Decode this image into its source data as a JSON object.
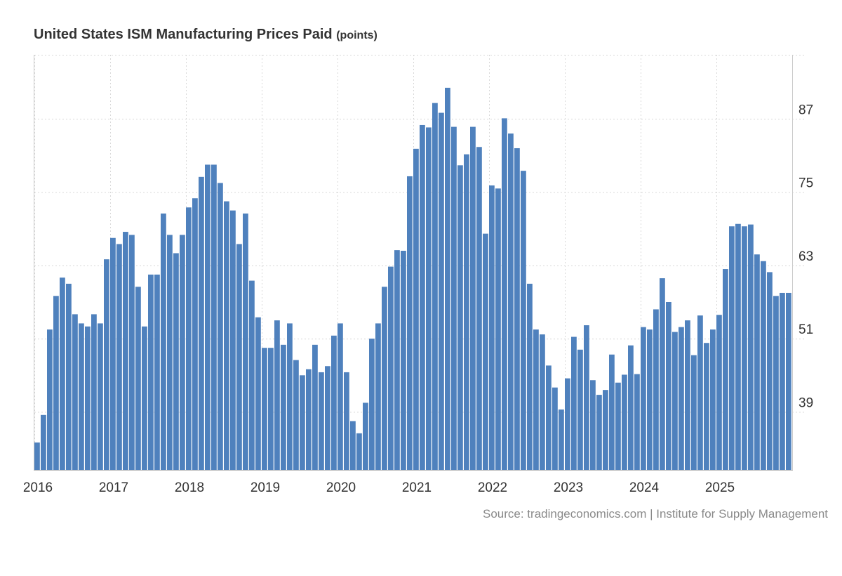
{
  "chart_data": {
    "type": "bar",
    "title": "United States ISM Manufacturing Prices Paid",
    "unit_label": "(points)",
    "source": "Source: tradingeconomics.com | Institute for Supply Management",
    "xlabel": "",
    "ylabel": "",
    "ylim": [
      29.5,
      97.5
    ],
    "y_ticks": [
      39,
      51,
      63,
      75,
      87
    ],
    "x_ticks": [
      "2016",
      "2017",
      "2018",
      "2019",
      "2020",
      "2021",
      "2022",
      "2023",
      "2024",
      "2025"
    ],
    "bar_color": "#4f81bd",
    "grid_color": "#d8d8d8",
    "series": [
      {
        "name": "ISM Manufacturing Prices Paid",
        "start": "2016-01",
        "values": [
          34.0,
          38.5,
          52.5,
          58.0,
          61.0,
          60.0,
          55.0,
          53.5,
          53.0,
          55.0,
          53.5,
          64.0,
          67.5,
          66.5,
          68.5,
          68.0,
          59.5,
          53.0,
          61.5,
          61.5,
          71.5,
          68.0,
          65.0,
          68.0,
          72.5,
          74.0,
          77.5,
          79.5,
          79.5,
          76.5,
          73.5,
          72.0,
          66.5,
          71.5,
          60.5,
          54.5,
          49.5,
          49.5,
          54.0,
          50.0,
          53.5,
          47.5,
          45.0,
          46.0,
          50.0,
          45.5,
          46.5,
          51.5,
          53.5,
          45.5,
          37.5,
          35.5,
          40.5,
          51.0,
          53.5,
          59.5,
          62.8,
          65.5,
          65.4,
          77.6,
          82.1,
          86.0,
          85.6,
          89.6,
          88.0,
          92.1,
          85.7,
          79.4,
          81.2,
          85.7,
          82.4,
          68.2,
          76.1,
          75.6,
          87.1,
          84.6,
          82.2,
          78.5,
          60.0,
          52.5,
          51.7,
          46.6,
          43.0,
          39.4,
          44.5,
          51.3,
          49.2,
          53.2,
          44.2,
          41.8,
          42.6,
          48.4,
          43.8,
          45.1,
          49.9,
          45.2,
          52.9,
          52.5,
          55.8,
          60.9,
          57.0,
          52.1,
          52.9,
          54.0,
          48.3,
          54.8,
          50.3,
          52.5,
          54.9,
          62.4,
          69.4,
          69.8,
          69.4,
          69.7,
          64.8,
          63.7,
          61.9,
          58.0,
          58.5,
          58.5
        ]
      }
    ]
  }
}
